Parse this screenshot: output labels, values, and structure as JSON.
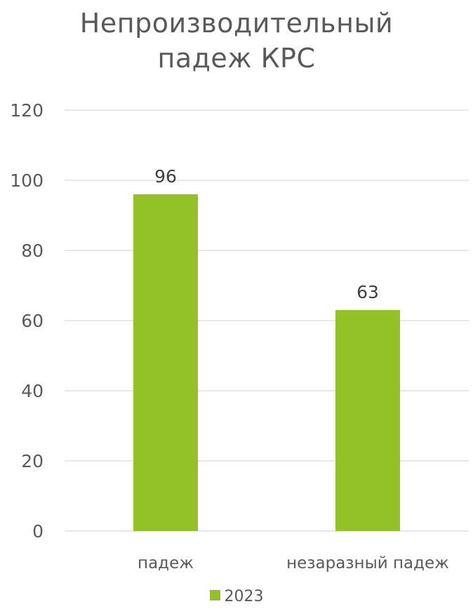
{
  "chart_data": {
    "type": "bar",
    "title_lines": [
      "Непроизводительный",
      "падеж КРС"
    ],
    "categories": [
      "падеж",
      "незаразный падеж"
    ],
    "series": [
      {
        "name": "2023",
        "values": [
          96,
          63
        ],
        "color": "#92C128"
      }
    ],
    "data_labels": [
      "96",
      "63"
    ],
    "y_ticks": [
      "0",
      "20",
      "40",
      "60",
      "80",
      "100",
      "120"
    ],
    "ylim": [
      0,
      120
    ],
    "y_step": 20,
    "grid": true,
    "legend_position": "bottom",
    "xlabel": "",
    "ylabel": ""
  },
  "colors": {
    "bar": "#92C128",
    "grid": "#D9D9D9",
    "text": "#595959"
  }
}
